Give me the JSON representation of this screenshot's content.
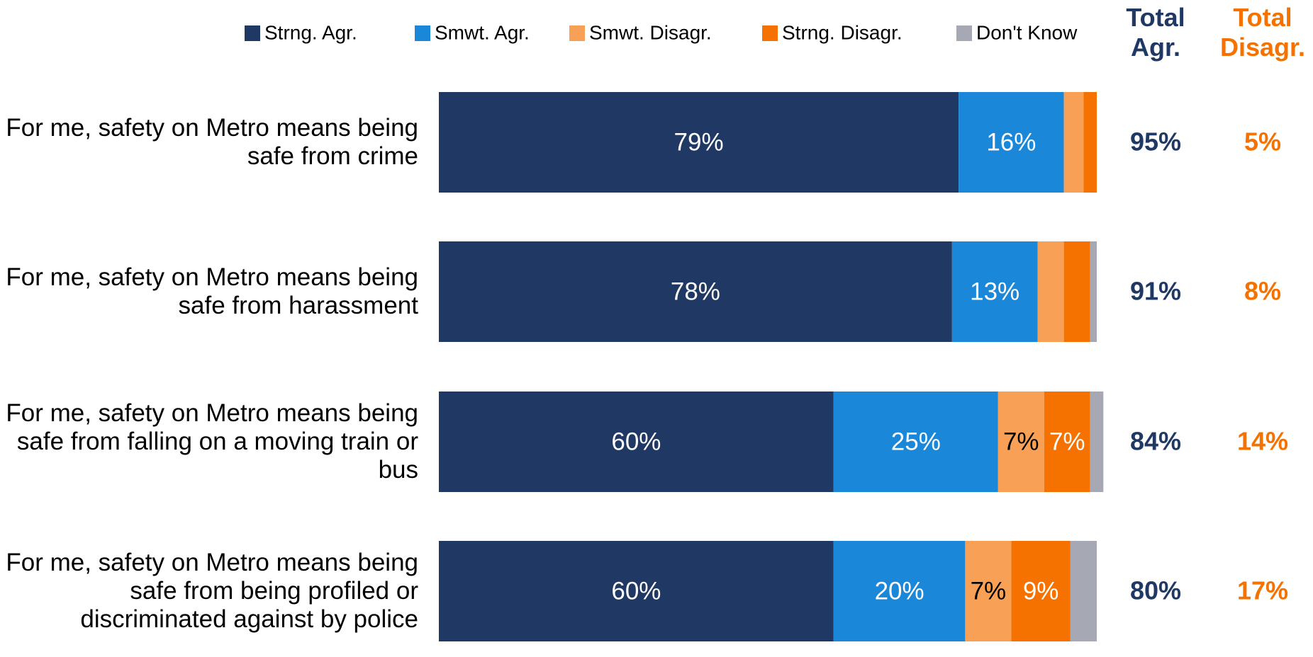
{
  "chart_data": {
    "type": "stacked_bar_horizontal",
    "categories": [
      "For me, safety on Metro means being safe from crime",
      "For me, safety on Metro means being safe from harassment",
      "For me, safety on Metro means being safe from falling on a moving train or bus",
      "For me, safety on Metro means being safe from being profiled or discriminated against by police"
    ],
    "xlim": [
      0,
      100
    ],
    "series": [
      {
        "name": "Strng. Agr.",
        "color": "#1f3864",
        "label_color": "#ffffff",
        "values": [
          79,
          78,
          60,
          60
        ],
        "value_labels": [
          "79%",
          "78%",
          "60%",
          "60%"
        ]
      },
      {
        "name": "Smwt. Agr.",
        "color": "#1a87d9",
        "label_color": "#ffffff",
        "values": [
          16,
          13,
          25,
          20
        ],
        "value_labels": [
          "16%",
          "13%",
          "25%",
          "20%"
        ]
      },
      {
        "name": "Smwt. Disagr.",
        "color": "#f9a057",
        "label_color": "#000000",
        "values": [
          3,
          4,
          7,
          7
        ],
        "value_labels": [
          null,
          null,
          "7%",
          "7%"
        ]
      },
      {
        "name": "Strng. Disagr.",
        "color": "#f57200",
        "label_color": "#ffffff",
        "values": [
          2,
          4,
          7,
          9
        ],
        "value_labels": [
          null,
          null,
          "7%",
          "9%"
        ]
      },
      {
        "name": "Don't Know",
        "color": "#a6a8b4",
        "label_color": "#000000",
        "values": [
          0,
          1,
          2,
          4
        ],
        "value_labels": [
          null,
          null,
          null,
          null
        ]
      }
    ],
    "totals": [
      {
        "title": "Total Agr.",
        "color": "#1f3864",
        "values": [
          95,
          91,
          84,
          80
        ],
        "value_labels": [
          "95%",
          "91%",
          "84%",
          "80%"
        ]
      },
      {
        "title": "Total Disagr.",
        "color": "#f57200",
        "values": [
          5,
          8,
          14,
          17
        ],
        "value_labels": [
          "5%",
          "8%",
          "14%",
          "17%"
        ]
      }
    ]
  }
}
